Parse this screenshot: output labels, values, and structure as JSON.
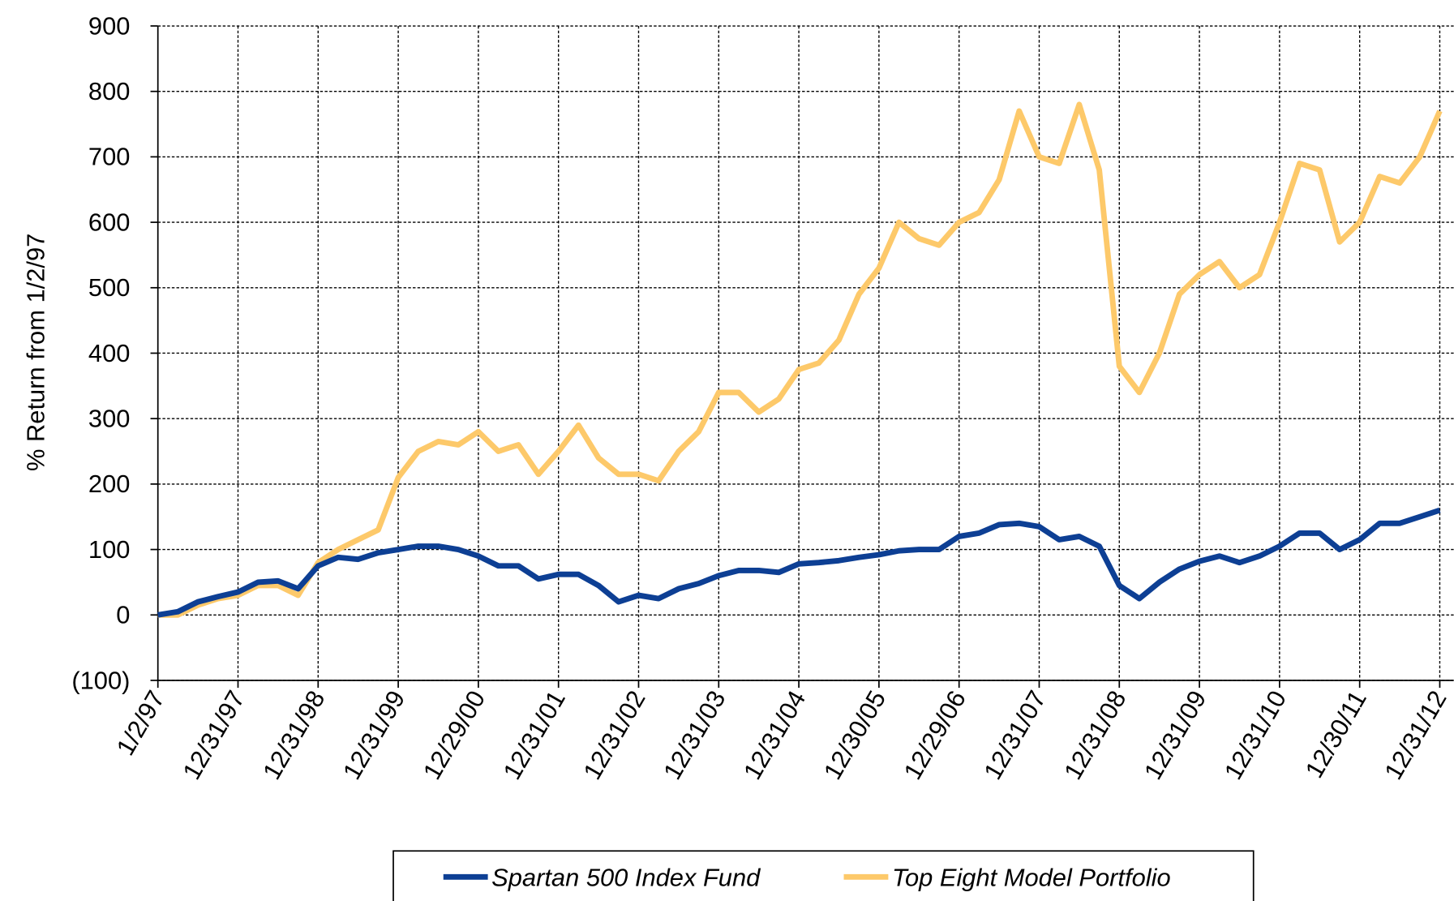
{
  "chart_data": {
    "type": "line",
    "y_label": "% Return from 1/2/97",
    "categories": [
      "1/2/97",
      null,
      null,
      null,
      "12/31/97",
      null,
      null,
      null,
      "12/31/98",
      null,
      null,
      null,
      "12/31/99",
      null,
      null,
      null,
      "12/29/00",
      null,
      null,
      null,
      "12/31/01",
      null,
      null,
      null,
      "12/31/02",
      null,
      null,
      null,
      "12/31/03",
      null,
      null,
      null,
      "12/31/04",
      null,
      null,
      null,
      "12/30/05",
      null,
      null,
      null,
      "12/29/06",
      null,
      null,
      null,
      "12/31/07",
      null,
      null,
      null,
      "12/31/08",
      null,
      null,
      null,
      "12/31/09",
      null,
      null,
      null,
      "12/31/10",
      null,
      null,
      null,
      "12/30/11",
      null,
      null,
      null,
      "12/31/12"
    ],
    "series": [
      {
        "name": "Spartan 500 Index Fund",
        "color": "#0d3f94",
        "values": [
          0,
          5,
          20,
          28,
          35,
          50,
          52,
          40,
          75,
          88,
          85,
          95,
          100,
          105,
          105,
          100,
          90,
          75,
          75,
          55,
          62,
          62,
          45,
          20,
          30,
          25,
          40,
          48,
          60,
          68,
          68,
          65,
          78,
          80,
          83,
          88,
          92,
          98,
          100,
          100,
          120,
          125,
          138,
          140,
          135,
          115,
          120,
          105,
          45,
          25,
          50,
          70,
          82,
          90,
          80,
          90,
          105,
          125,
          125,
          100,
          115,
          140,
          140,
          150,
          160
        ]
      },
      {
        "name": "Top Eight Model Portfolio",
        "color": "#fdc96a",
        "values": [
          0,
          0,
          15,
          25,
          30,
          45,
          45,
          30,
          80,
          100,
          115,
          130,
          210,
          250,
          265,
          260,
          280,
          250,
          260,
          215,
          250,
          290,
          240,
          215,
          215,
          205,
          250,
          280,
          340,
          340,
          310,
          330,
          375,
          385,
          420,
          490,
          530,
          600,
          575,
          565,
          600,
          615,
          665,
          770,
          700,
          690,
          780,
          680,
          380,
          340,
          400,
          490,
          520,
          540,
          500,
          520,
          600,
          690,
          680,
          570,
          600,
          670,
          660,
          700,
          770
        ]
      }
    ],
    "ylim": [
      -100,
      900
    ],
    "yticks": [
      {
        "value": -100,
        "label": "(100)"
      },
      0,
      100,
      200,
      300,
      400,
      500,
      600,
      700,
      800,
      900
    ],
    "negative_tick_color": "#ff0000",
    "grid": true,
    "legend": "bottom"
  }
}
